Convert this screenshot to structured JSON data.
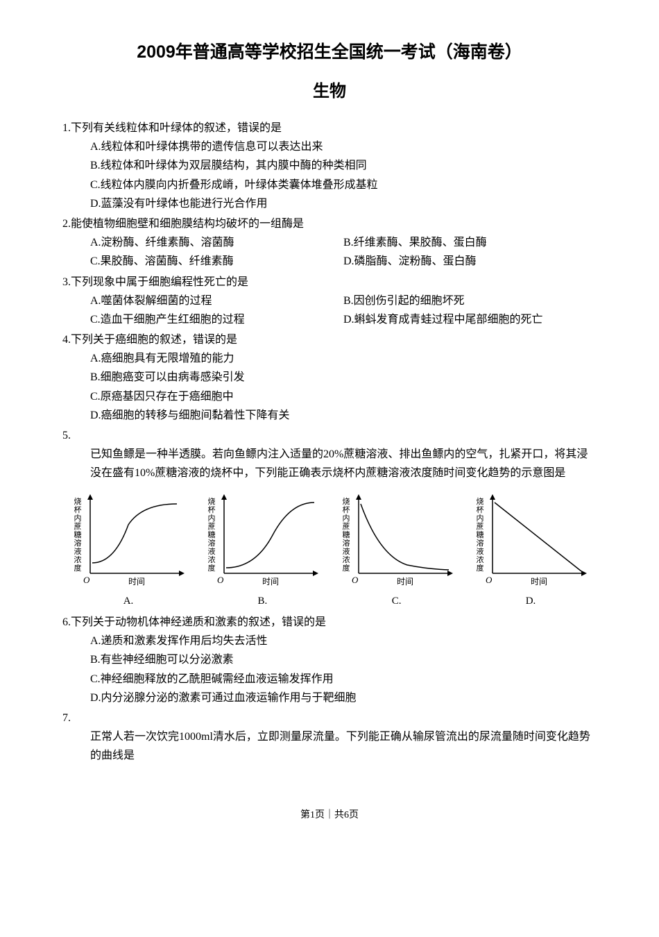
{
  "title": "2009年普通高等学校招生全国统一考试（海南卷）",
  "subtitle": "生物",
  "questions": [
    {
      "num": "1.",
      "stem": "下列有关线粒体和叶绿体的叙述，错误的是",
      "layout": "single",
      "options": [
        "A.线粒体和叶绿体携带的遗传信息可以表达出来",
        "B.线粒体和叶绿体为双层膜结构，其内膜中酶的种类相同",
        "C.线粒体内膜向内折叠形成嵴，叶绿体类囊体堆叠形成基粒",
        "D.蓝藻没有叶绿体也能进行光合作用"
      ]
    },
    {
      "num": "2.",
      "stem": "能使植物细胞壁和细胞膜结构均破坏的一组酶是",
      "layout": "two-col",
      "options": [
        "A.淀粉酶、纤维素酶、溶菌酶",
        "B.纤维素酶、果胶酶、蛋白酶",
        "C.果胶酶、溶菌酶、纤维素酶",
        "D.磷脂酶、淀粉酶、蛋白酶"
      ]
    },
    {
      "num": "3.",
      "stem": "下列现象中属于细胞编程性死亡的是",
      "layout": "two-col",
      "options": [
        "A.噬菌体裂解细菌的过程",
        "B.因创伤引起的细胞坏死",
        "C.造血干细胞产生红细胞的过程",
        "D.蝌蚪发育成青蛙过程中尾部细胞的死亡"
      ]
    },
    {
      "num": "4.",
      "stem": "下列关于癌细胞的叙述，错误的是",
      "layout": "single",
      "options": [
        "A.癌细胞具有无限增殖的能力",
        "B.细胞癌变可以由病毒感染引发",
        "C.原癌基因只存在于癌细胞中",
        "D.癌细胞的转移与细胞间黏着性下降有关"
      ]
    },
    {
      "num": "5.",
      "stem": "",
      "body": "已知鱼鳔是一种半透膜。若向鱼鳔内注入适量的20%蔗糖溶液、排出鱼鳔内的空气，扎紧开口，将其浸没在盛有10%蔗糖溶液的烧杯中，下列能正确表示烧杯内蔗糖溶液浓度随时间变化趋势的示意图是",
      "layout": "charts",
      "chart": {
        "y_axis_label": "烧杯内蔗糖溶液浓度",
        "x_axis_label": "时间",
        "origin_label": "O",
        "axis_color": "#000000",
        "line_color": "#000000",
        "axis_width": 1.5,
        "line_width": 1.5,
        "font_size": 11,
        "plots": [
          {
            "label": "A.",
            "shape": "rise-plateau"
          },
          {
            "label": "B.",
            "shape": "sigmoid-up"
          },
          {
            "label": "C.",
            "shape": "exp-decay"
          },
          {
            "label": "D.",
            "shape": "linear-down"
          }
        ]
      }
    },
    {
      "num": "6.",
      "stem": "下列关于动物机体神经递质和激素的叙述，错误的是",
      "layout": "single",
      "options": [
        "A.递质和激素发挥作用后均失去活性",
        "B.有些神经细胞可以分泌激素",
        "C.神经细胞释放的乙酰胆碱需经血液运输发挥作用",
        "D.内分泌腺分泌的激素可通过血液运输作用与于靶细胞"
      ]
    },
    {
      "num": "7.",
      "stem": "",
      "body": "正常人若一次饮完1000ml清水后，立即测量尿流量。下列能正确从输尿管流出的尿流量随时间变化趋势的曲线是",
      "layout": "none"
    }
  ],
  "footer": "第1页｜共6页"
}
